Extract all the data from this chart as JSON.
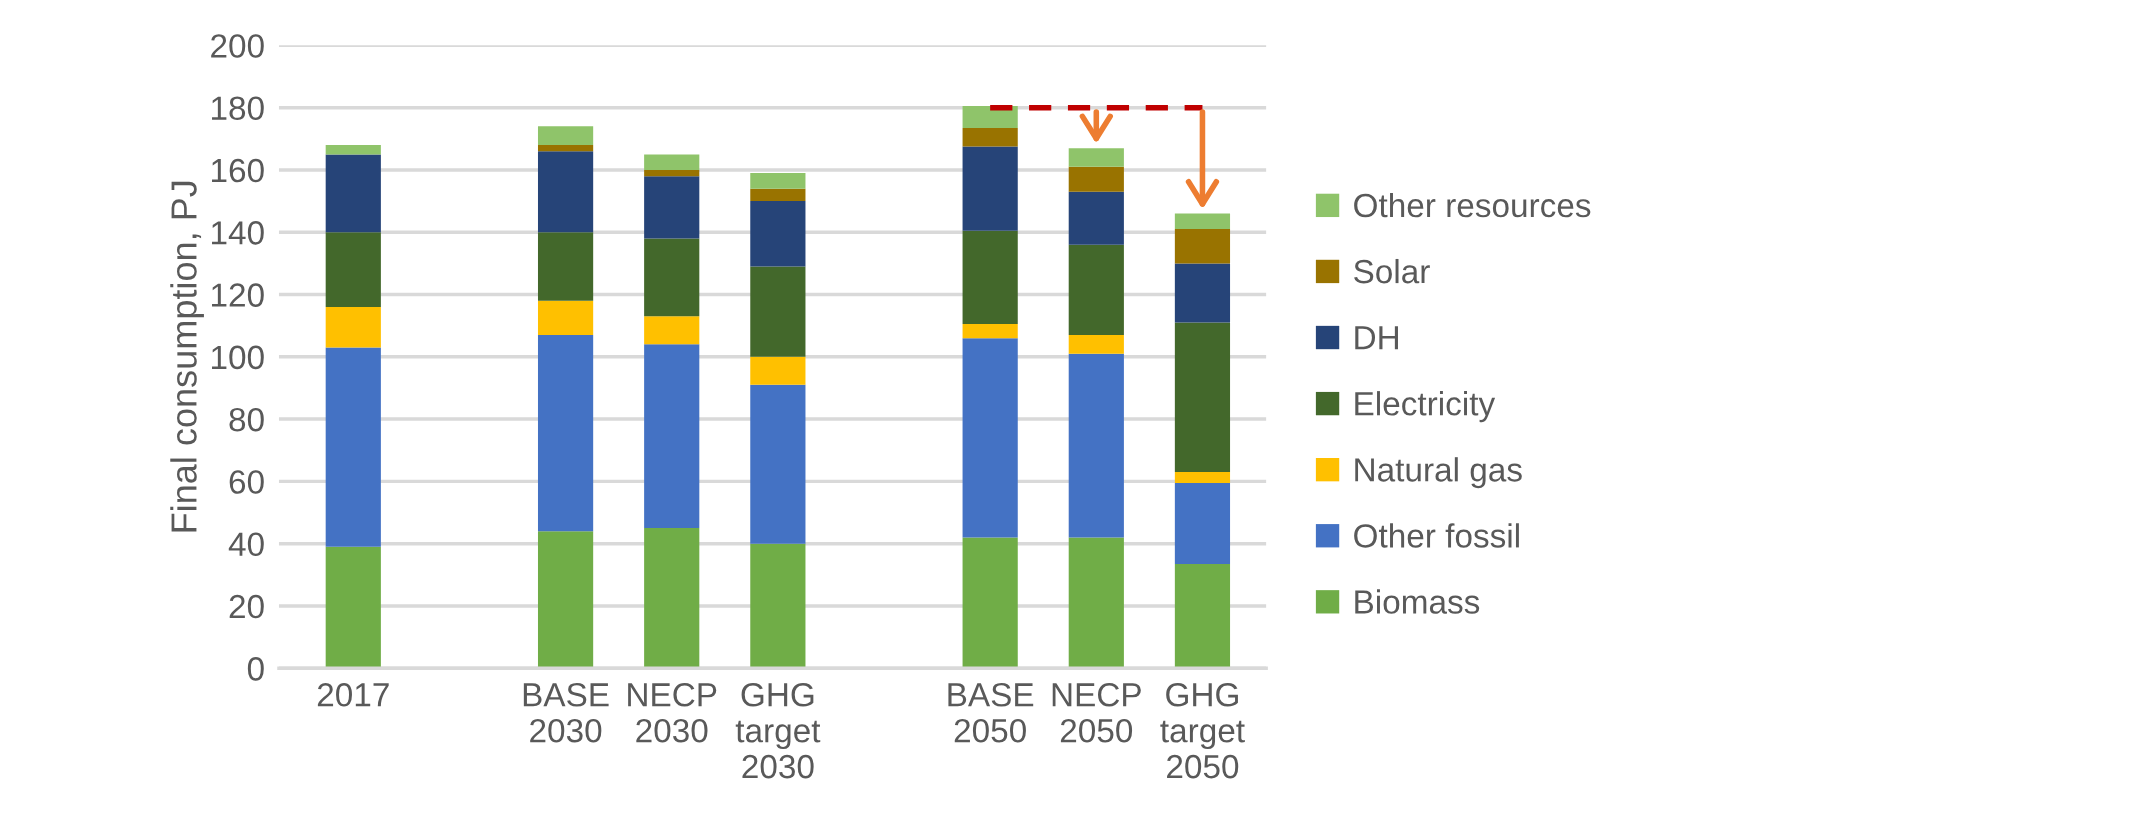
{
  "chart_data": {
    "type": "bar",
    "stacked": true,
    "ylabel": "Final consumption, PJ",
    "categories": [
      "2017",
      null,
      "BASE\n2030",
      "NECP\n2030",
      "GHG\ntarget\n2030",
      null,
      "BASE\n2050",
      "NECP\n2050",
      "GHG\ntarget\n2050"
    ],
    "series": [
      {
        "name": "Biomass",
        "color": "#70ad47",
        "values": [
          39,
          null,
          44,
          45,
          40,
          null,
          42,
          42,
          33.5
        ]
      },
      {
        "name": "Other fossil",
        "color": "#4472c4",
        "values": [
          64,
          null,
          63,
          59,
          51,
          null,
          64,
          59,
          26
        ]
      },
      {
        "name": "Natural gas",
        "color": "#ffc000",
        "values": [
          13,
          null,
          11,
          9,
          9,
          null,
          4.5,
          6,
          3.5
        ]
      },
      {
        "name": "Electricity",
        "color": "#43682b",
        "values": [
          24,
          null,
          22,
          25,
          29,
          null,
          30,
          29,
          48
        ]
      },
      {
        "name": "DH",
        "color": "#264478",
        "values": [
          25,
          null,
          26,
          20,
          21,
          null,
          27,
          17,
          19
        ]
      },
      {
        "name": "Solar",
        "color": "#997300",
        "values": [
          0,
          null,
          2,
          2,
          4,
          null,
          6,
          8,
          11
        ]
      },
      {
        "name": "Other resources",
        "color": "#8fc46a",
        "values": [
          3,
          null,
          6,
          5,
          5,
          null,
          7,
          6,
          5
        ]
      },
      {
        "type": "line",
        "color": "#c00000",
        "line_style": "dashed",
        "values": [
          null,
          null,
          null,
          null,
          null,
          null,
          180,
          180,
          180
        ]
      }
    ],
    "ylim": [
      0,
      200
    ],
    "yticks": [
      0,
      20,
      40,
      60,
      80,
      100,
      120,
      140,
      160,
      180,
      200
    ],
    "grid": "y",
    "legend": "right"
  }
}
